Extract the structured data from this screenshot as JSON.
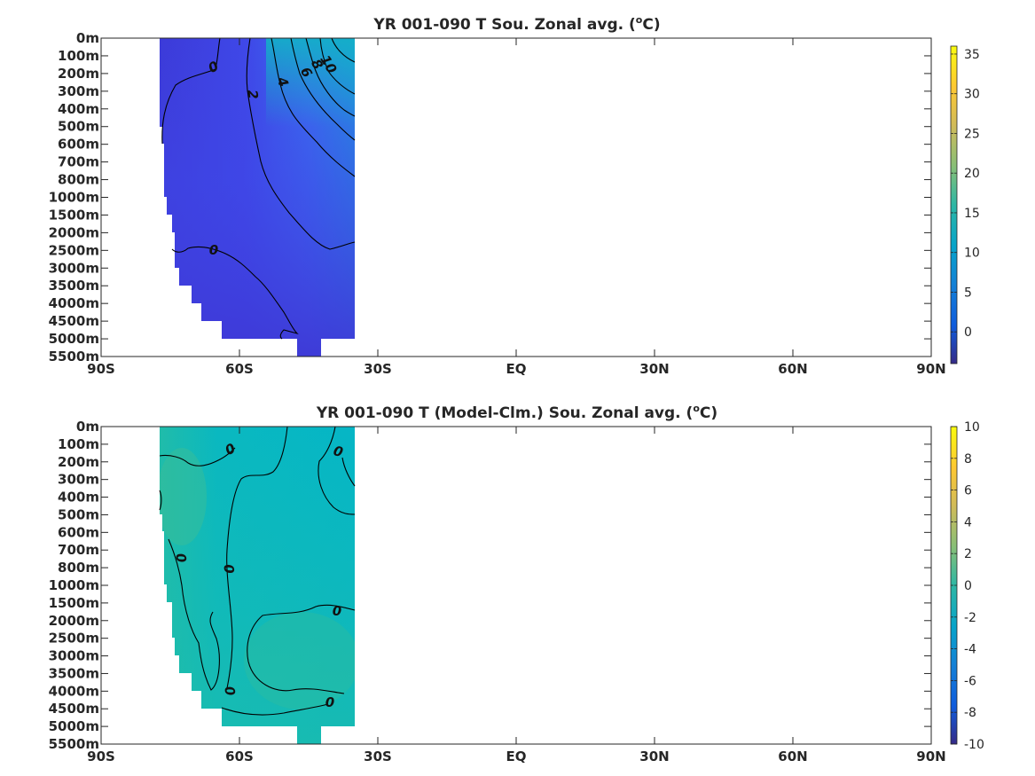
{
  "chart_data": [
    {
      "type": "heatmap",
      "title": "YR 001-090 T Sou. Zonal avg. (",
      "title_unit": "C)",
      "title_sup": "o",
      "x_tick_labels": [
        "90S",
        "60S",
        "30S",
        "EQ",
        "30N",
        "60N",
        "90N"
      ],
      "x_ticks": [
        -90,
        -60,
        -30,
        0,
        30,
        60,
        90
      ],
      "xlim": [
        -90,
        90
      ],
      "y_tick_labels": [
        "0m",
        "100m",
        "200m",
        "300m",
        "400m",
        "500m",
        "600m",
        "700m",
        "800m",
        "1000m",
        "1500m",
        "2000m",
        "2500m",
        "3000m",
        "3500m",
        "4000m",
        "4500m",
        "5000m",
        "5500m"
      ],
      "colorbar": {
        "ticks": [
          0,
          5,
          10,
          15,
          20,
          25,
          30,
          35
        ],
        "range": [
          -4,
          36
        ],
        "colormap": "parula"
      },
      "data_extent_lat": [
        -77.5,
        -34.5
      ],
      "contour_labels": [
        "0",
        "2",
        "4",
        "6",
        "8",
        "10",
        "0"
      ],
      "contour_levels": [
        0,
        2,
        4,
        6,
        8,
        10
      ],
      "ocean_fill_summary": "values from about -1 °C (deep, high latitude) to about 14 °C (upper ocean near 35S)"
    },
    {
      "type": "heatmap",
      "title": "YR 001-090 T (Model-Clm.) Sou. Zonal avg. (",
      "title_unit": "C)",
      "title_sup": "o",
      "x_tick_labels": [
        "90S",
        "60S",
        "30S",
        "EQ",
        "30N",
        "60N",
        "90N"
      ],
      "x_ticks": [
        -90,
        -60,
        -30,
        0,
        30,
        60,
        90
      ],
      "xlim": [
        -90,
        90
      ],
      "y_tick_labels": [
        "0m",
        "100m",
        "200m",
        "300m",
        "400m",
        "500m",
        "600m",
        "700m",
        "800m",
        "1000m",
        "1500m",
        "2000m",
        "2500m",
        "3000m",
        "3500m",
        "4000m",
        "4500m",
        "5000m",
        "5500m"
      ],
      "colorbar": {
        "ticks": [
          10,
          8,
          6,
          4,
          2,
          0,
          -2,
          -4,
          -6,
          -8,
          -10
        ],
        "range": [
          -10,
          10
        ],
        "colormap": "parula"
      },
      "data_extent_lat": [
        -77.5,
        -34.5
      ],
      "contour_labels": [
        "0",
        "0",
        "0",
        "0",
        "0",
        "0",
        "0"
      ],
      "contour_levels": [
        0
      ],
      "ocean_fill_summary": "anomalies near 0 °C (about -1 to +1.5 °C)"
    }
  ],
  "colors": {
    "axis": "#262626",
    "contour": "#000000",
    "background": "#ffffff"
  }
}
